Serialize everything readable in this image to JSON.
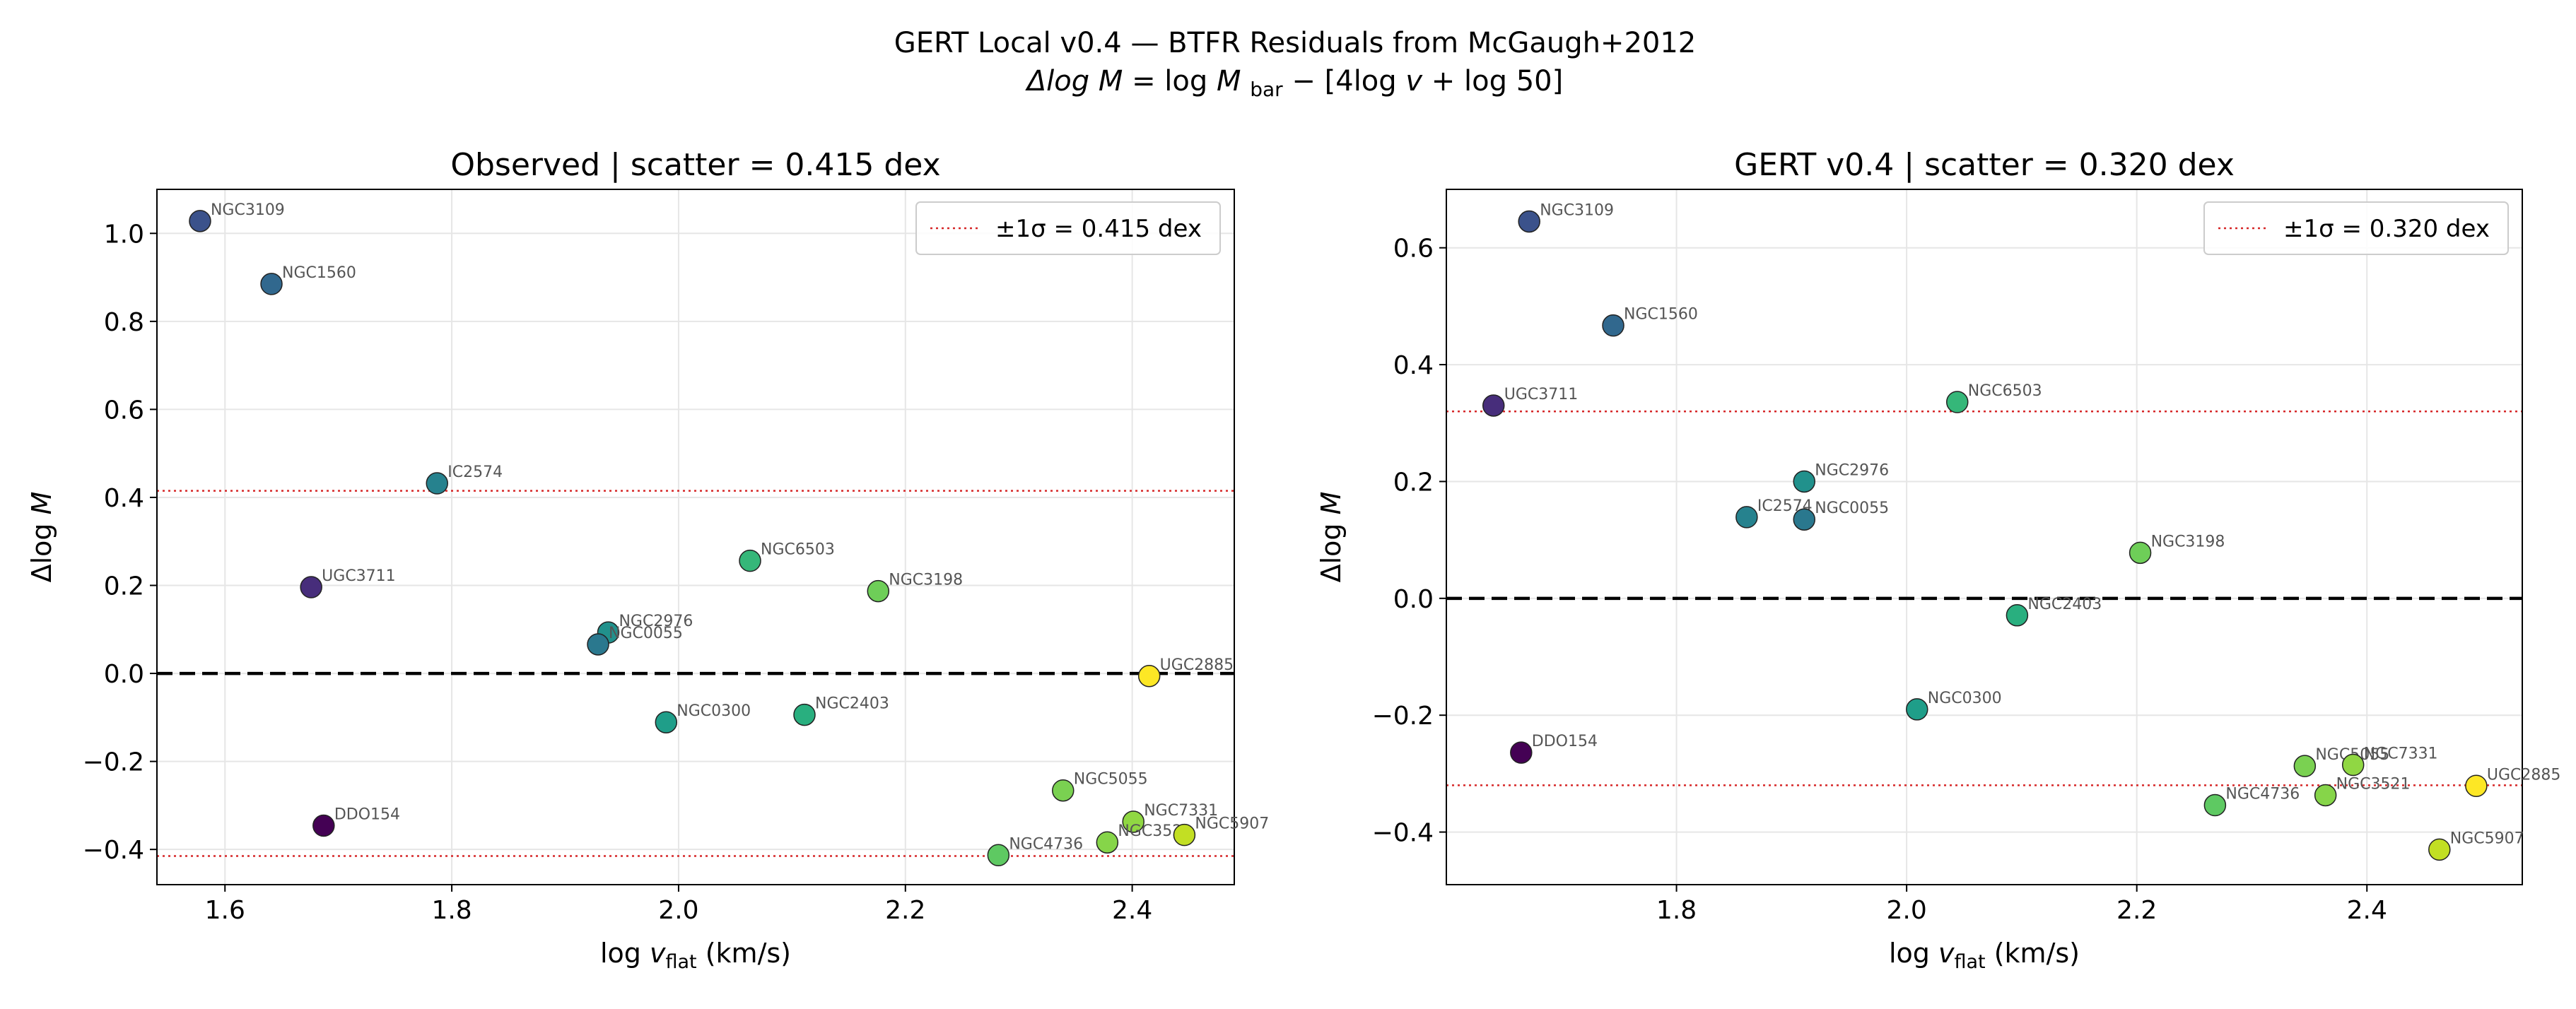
{
  "figure": {
    "title_line1": "GERT Local v0.4 — BTFR Residuals from McGaugh+2012",
    "title_line2": "Δlog M = log M_bar − [4log v + log 50]"
  },
  "colors": {
    "dashed_zero": "#000000",
    "sigma_line": "#d62728",
    "grid": "#e6e6e6",
    "marker_edge": "#222222",
    "label_text": "#555555"
  },
  "chart_data": [
    {
      "type": "scatter",
      "title": "Observed  |  scatter = 0.415 dex",
      "xlabel": "log v_flat (km/s)",
      "ylabel": "Δlog M",
      "xlim": [
        1.54,
        2.49
      ],
      "ylim": [
        -0.48,
        1.1
      ],
      "xticks": [
        1.6,
        1.8,
        2.0,
        2.2,
        2.4
      ],
      "yticks": [
        -0.4,
        -0.2,
        0.0,
        0.2,
        0.4,
        0.6,
        0.8,
        1.0
      ],
      "xtick_labels": [
        "1.6",
        "1.8",
        "2.0",
        "2.2",
        "2.4"
      ],
      "ytick_labels": [
        "−0.4",
        "−0.2",
        "0.0",
        "0.2",
        "0.4",
        "0.6",
        "0.8",
        "1.0"
      ],
      "grid": true,
      "sigma": 0.415,
      "legend": {
        "label": "±1σ = 0.415 dex",
        "position": "upper-right"
      },
      "points": [
        {
          "name": "NGC3109",
          "x": 1.578,
          "y": 1.028,
          "color": "#3b528b"
        },
        {
          "name": "NGC1560",
          "x": 1.641,
          "y": 0.885,
          "color": "#31688e"
        },
        {
          "name": "IC2574",
          "x": 1.787,
          "y": 0.432,
          "color": "#26828e"
        },
        {
          "name": "UGC3711",
          "x": 1.676,
          "y": 0.196,
          "color": "#472d7b"
        },
        {
          "name": "DDO154",
          "x": 1.687,
          "y": -0.346,
          "color": "#440154"
        },
        {
          "name": "NGC2976",
          "x": 1.938,
          "y": 0.093,
          "color": "#21918c"
        },
        {
          "name": "NGC0055",
          "x": 1.929,
          "y": 0.066,
          "color": "#2a788e"
        },
        {
          "name": "NGC0300",
          "x": 1.989,
          "y": -0.111,
          "color": "#1f9e89"
        },
        {
          "name": "NGC6503",
          "x": 2.063,
          "y": 0.256,
          "color": "#35b779"
        },
        {
          "name": "NGC2403",
          "x": 2.111,
          "y": -0.094,
          "color": "#29af7f"
        },
        {
          "name": "NGC3198",
          "x": 2.176,
          "y": 0.187,
          "color": "#6ece58"
        },
        {
          "name": "UGC2885",
          "x": 2.415,
          "y": -0.006,
          "color": "#fde725"
        },
        {
          "name": "NGC5055",
          "x": 2.339,
          "y": -0.266,
          "color": "#7ad151"
        },
        {
          "name": "NGC7331",
          "x": 2.401,
          "y": -0.337,
          "color": "#90d743"
        },
        {
          "name": "NGC3521",
          "x": 2.378,
          "y": -0.384,
          "color": "#86d549"
        },
        {
          "name": "NGC5907",
          "x": 2.446,
          "y": -0.367,
          "color": "#c2df23"
        },
        {
          "name": "NGC4736",
          "x": 2.282,
          "y": -0.413,
          "color": "#5ec962"
        }
      ]
    },
    {
      "type": "scatter",
      "title": "GERT v0.4  |  scatter = 0.320 dex",
      "xlabel": "log v_flat (km/s)",
      "ylabel": "Δlog M",
      "xlim": [
        1.6,
        2.535
      ],
      "ylim": [
        -0.49,
        0.7
      ],
      "xticks": [
        1.8,
        2.0,
        2.2,
        2.4
      ],
      "yticks": [
        -0.4,
        -0.2,
        0.0,
        0.2,
        0.4,
        0.6
      ],
      "xtick_labels": [
        "1.8",
        "2.0",
        "2.2",
        "2.4"
      ],
      "ytick_labels": [
        "−0.4",
        "−0.2",
        "0.0",
        "0.2",
        "0.4",
        "0.6"
      ],
      "grid": true,
      "sigma": 0.32,
      "legend": {
        "label": "±1σ = 0.320 dex",
        "position": "upper-right"
      },
      "points": [
        {
          "name": "NGC3109",
          "x": 1.672,
          "y": 0.645,
          "color": "#3b528b"
        },
        {
          "name": "NGC1560",
          "x": 1.745,
          "y": 0.467,
          "color": "#31688e"
        },
        {
          "name": "UGC3711",
          "x": 1.641,
          "y": 0.33,
          "color": "#472d7b"
        },
        {
          "name": "NGC6503",
          "x": 2.044,
          "y": 0.336,
          "color": "#35b779"
        },
        {
          "name": "NGC2976",
          "x": 1.911,
          "y": 0.2,
          "color": "#21918c"
        },
        {
          "name": "IC2574",
          "x": 1.861,
          "y": 0.139,
          "color": "#26828e"
        },
        {
          "name": "NGC0055",
          "x": 1.911,
          "y": 0.135,
          "color": "#2a788e"
        },
        {
          "name": "NGC3198",
          "x": 2.203,
          "y": 0.078,
          "color": "#6ece58"
        },
        {
          "name": "NGC2403",
          "x": 2.096,
          "y": -0.029,
          "color": "#29af7f"
        },
        {
          "name": "NGC0300",
          "x": 2.009,
          "y": -0.19,
          "color": "#1f9e89"
        },
        {
          "name": "DDO154",
          "x": 1.665,
          "y": -0.264,
          "color": "#440154"
        },
        {
          "name": "NGC5055",
          "x": 2.346,
          "y": -0.287,
          "color": "#7ad151"
        },
        {
          "name": "NGC7331",
          "x": 2.388,
          "y": -0.285,
          "color": "#90d743"
        },
        {
          "name": "NGC4736",
          "x": 2.268,
          "y": -0.354,
          "color": "#5ec962"
        },
        {
          "name": "NGC3521",
          "x": 2.364,
          "y": -0.337,
          "color": "#86d549"
        },
        {
          "name": "UGC2885",
          "x": 2.495,
          "y": -0.321,
          "color": "#fde725"
        },
        {
          "name": "NGC5907",
          "x": 2.463,
          "y": -0.43,
          "color": "#c2df23"
        }
      ]
    }
  ]
}
